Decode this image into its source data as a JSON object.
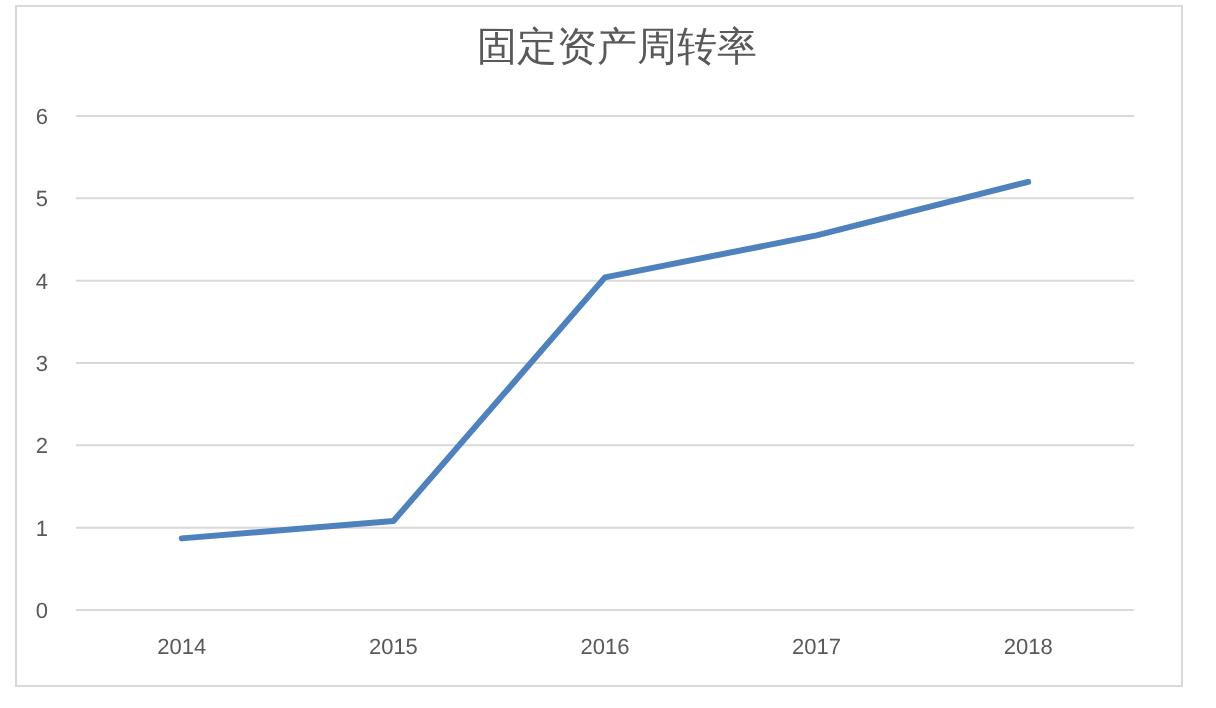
{
  "chart_data": {
    "type": "line",
    "title": "固定资产周转率",
    "categories": [
      "2014",
      "2015",
      "2016",
      "2017",
      "2018"
    ],
    "series": [
      {
        "color": "#4f81bd",
        "values": [
          0.87,
          1.08,
          4.04,
          4.55,
          5.2
        ]
      }
    ],
    "ylim": [
      0,
      6
    ],
    "yticks": [
      0,
      1,
      2,
      3,
      4,
      5,
      6
    ],
    "grid": "y"
  }
}
